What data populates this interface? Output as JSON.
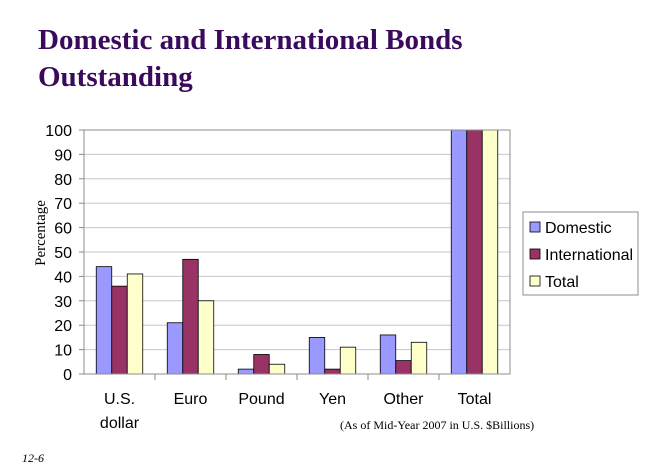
{
  "slide": {
    "title": "Domestic and International Bonds Outstanding",
    "footnote": "(As of Mid-Year 2007 in U.S. $Billions)",
    "slide_number": "12-6"
  },
  "colors": {
    "domestic": "#9999ff",
    "international": "#993366",
    "total": "#ffffcc",
    "title": "#3a0a5c"
  },
  "chart_data": {
    "type": "bar",
    "categories": [
      "U.S. dollar",
      "Euro",
      "Pound",
      "Yen",
      "Other",
      "Total"
    ],
    "category_lines": [
      [
        "U.S.",
        "dollar"
      ],
      [
        "Euro"
      ],
      [
        "Pound"
      ],
      [
        "Yen"
      ],
      [
        "Other"
      ],
      [
        "Total"
      ]
    ],
    "series": [
      {
        "name": "Domestic",
        "values": [
          44,
          21,
          2,
          15,
          16,
          100
        ]
      },
      {
        "name": "International",
        "values": [
          36,
          47,
          8,
          2,
          5.5,
          100
        ]
      },
      {
        "name": "Total",
        "values": [
          41,
          30,
          4,
          11,
          13,
          100
        ]
      }
    ],
    "ylabel": "Percentage",
    "ylim": [
      0,
      100
    ],
    "yticks": [
      0,
      10,
      20,
      30,
      40,
      50,
      60,
      70,
      80,
      90,
      100
    ],
    "grid": true,
    "legend": "right"
  }
}
